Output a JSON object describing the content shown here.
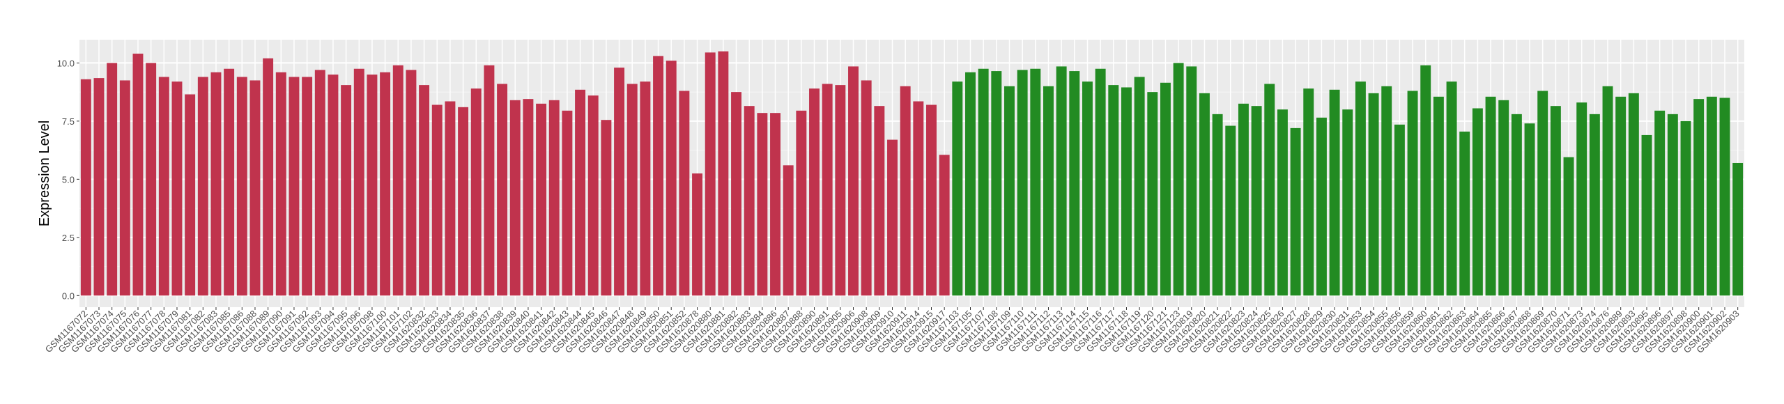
{
  "chart_data": {
    "type": "bar",
    "y_label": "Expression Level",
    "categories": [
      "GSM1167072",
      "GSM1167073",
      "GSM1167074",
      "GSM1167075",
      "GSM1167076",
      "GSM1167077",
      "GSM1167078",
      "GSM1167079",
      "GSM1167081",
      "GSM1167082",
      "GSM1167083",
      "GSM1167085",
      "GSM1167086",
      "GSM1167088",
      "GSM1167089",
      "GSM1167090",
      "GSM1167091",
      "GSM1167092",
      "GSM1167093",
      "GSM1167094",
      "GSM1167095",
      "GSM1167096",
      "GSM1167098",
      "GSM1167100",
      "GSM1167101",
      "GSM1167102",
      "GSM1620832",
      "GSM1620833",
      "GSM1620834",
      "GSM1620835",
      "GSM1620836",
      "GSM1620837",
      "GSM1620838",
      "GSM1620839",
      "GSM1620840",
      "GSM1620841",
      "GSM1620842",
      "GSM1620843",
      "GSM1620844",
      "GSM1620845",
      "GSM1620846",
      "GSM1620847",
      "GSM1620848",
      "GSM1620849",
      "GSM1620850",
      "GSM1620851",
      "GSM1620852",
      "GSM1620878",
      "GSM1620880",
      "GSM1620881",
      "GSM1620882",
      "GSM1620883",
      "GSM1620884",
      "GSM1620886",
      "GSM1620887",
      "GSM1620888",
      "GSM1620890",
      "GSM1620891",
      "GSM1620905",
      "GSM1620906",
      "GSM1620908",
      "GSM1620909",
      "GSM1620910",
      "GSM1620911",
      "GSM1620914",
      "GSM1620915",
      "GSM1620917",
      "GSM1167103",
      "GSM1167105",
      "GSM1167107",
      "GSM1167108",
      "GSM1167109",
      "GSM1167110",
      "GSM1167111",
      "GSM1167112",
      "GSM1167113",
      "GSM1167114",
      "GSM1167115",
      "GSM1167116",
      "GSM1167117",
      "GSM1167118",
      "GSM1167119",
      "GSM1167120",
      "GSM1167121",
      "GSM1167123",
      "GSM1620819",
      "GSM1620820",
      "GSM1620821",
      "GSM1620822",
      "GSM1620823",
      "GSM1620824",
      "GSM1620825",
      "GSM1620826",
      "GSM1620827",
      "GSM1620828",
      "GSM1620829",
      "GSM1620830",
      "GSM1620831",
      "GSM1620853",
      "GSM1620854",
      "GSM1620855",
      "GSM1620856",
      "GSM1620859",
      "GSM1620860",
      "GSM1620861",
      "GSM1620862",
      "GSM1620863",
      "GSM1620864",
      "GSM1620865",
      "GSM1620866",
      "GSM1620867",
      "GSM1620868",
      "GSM1620869",
      "GSM1620870",
      "GSM1620871",
      "GSM1620873",
      "GSM1620874",
      "GSM1620876",
      "GSM1620889",
      "GSM1620893",
      "GSM1620895",
      "GSM1620896",
      "GSM1620897",
      "GSM1620898",
      "GSM1620900",
      "GSM1620901",
      "GSM1620902",
      "GSM1620903"
    ],
    "values": [
      9.3,
      9.35,
      10.0,
      9.25,
      10.4,
      10.0,
      9.4,
      9.2,
      8.65,
      9.4,
      9.6,
      9.75,
      9.4,
      9.25,
      10.2,
      9.6,
      9.4,
      9.4,
      9.7,
      9.5,
      9.05,
      9.75,
      9.5,
      9.6,
      9.9,
      9.7,
      9.05,
      8.2,
      8.35,
      8.1,
      8.9,
      9.9,
      9.1,
      8.4,
      8.45,
      8.25,
      8.4,
      7.95,
      8.85,
      8.6,
      7.55,
      9.8,
      9.1,
      9.2,
      10.3,
      10.1,
      8.8,
      5.25,
      10.45,
      10.5,
      8.75,
      8.15,
      7.85,
      7.85,
      5.6,
      7.95,
      8.9,
      9.1,
      9.05,
      9.85,
      9.25,
      8.15,
      6.7,
      9.0,
      8.35,
      8.2,
      6.05,
      9.2,
      9.6,
      9.75,
      9.65,
      9.0,
      9.7,
      9.75,
      9.0,
      9.85,
      9.65,
      9.2,
      9.75,
      9.05,
      8.95,
      9.4,
      8.75,
      9.15,
      10.0,
      9.85,
      8.7,
      7.8,
      7.3,
      8.25,
      8.15,
      9.1,
      8.0,
      7.2,
      8.9,
      7.65,
      8.85,
      8.0,
      9.2,
      8.7,
      9.0,
      7.35,
      8.8,
      9.9,
      8.55,
      9.2,
      7.05,
      8.05,
      8.55,
      8.4,
      7.8,
      7.4,
      8.8,
      8.15,
      5.95,
      8.3,
      7.8,
      9.0,
      8.55,
      8.7,
      6.9,
      7.95,
      7.8,
      7.5,
      8.45,
      8.55,
      8.5,
      5.7
    ],
    "colors": [
      "#c0334d",
      "#c0334d",
      "#c0334d",
      "#c0334d",
      "#c0334d",
      "#c0334d",
      "#c0334d",
      "#c0334d",
      "#c0334d",
      "#c0334d",
      "#c0334d",
      "#c0334d",
      "#c0334d",
      "#c0334d",
      "#c0334d",
      "#c0334d",
      "#c0334d",
      "#c0334d",
      "#c0334d",
      "#c0334d",
      "#c0334d",
      "#c0334d",
      "#c0334d",
      "#c0334d",
      "#c0334d",
      "#c0334d",
      "#c0334d",
      "#c0334d",
      "#c0334d",
      "#c0334d",
      "#c0334d",
      "#c0334d",
      "#c0334d",
      "#c0334d",
      "#c0334d",
      "#c0334d",
      "#c0334d",
      "#c0334d",
      "#c0334d",
      "#c0334d",
      "#c0334d",
      "#c0334d",
      "#c0334d",
      "#c0334d",
      "#c0334d",
      "#c0334d",
      "#c0334d",
      "#c0334d",
      "#c0334d",
      "#c0334d",
      "#c0334d",
      "#c0334d",
      "#c0334d",
      "#c0334d",
      "#c0334d",
      "#c0334d",
      "#c0334d",
      "#c0334d",
      "#c0334d",
      "#c0334d",
      "#c0334d",
      "#c0334d",
      "#c0334d",
      "#c0334d",
      "#c0334d",
      "#c0334d",
      "#c0334d",
      "#228b22",
      "#228b22",
      "#228b22",
      "#228b22",
      "#228b22",
      "#228b22",
      "#228b22",
      "#228b22",
      "#228b22",
      "#228b22",
      "#228b22",
      "#228b22",
      "#228b22",
      "#228b22",
      "#228b22",
      "#228b22",
      "#228b22",
      "#228b22",
      "#228b22",
      "#228b22",
      "#228b22",
      "#228b22",
      "#228b22",
      "#228b22",
      "#228b22",
      "#228b22",
      "#228b22",
      "#228b22",
      "#228b22",
      "#228b22",
      "#228b22",
      "#228b22",
      "#228b22",
      "#228b22",
      "#228b22",
      "#228b22",
      "#228b22",
      "#228b22",
      "#228b22",
      "#228b22",
      "#228b22",
      "#228b22",
      "#228b22",
      "#228b22",
      "#228b22",
      "#228b22",
      "#228b22",
      "#228b22",
      "#228b22",
      "#228b22",
      "#228b22",
      "#228b22",
      "#228b22",
      "#228b22",
      "#228b22",
      "#228b22",
      "#228b22",
      "#228b22",
      "#228b22",
      "#228b22",
      "#228b22"
    ],
    "ylim": [
      -0.5,
      11.0
    ],
    "yticks": [
      {
        "value": 0,
        "label": "0.0"
      },
      {
        "value": 2.5,
        "label": "2.5"
      },
      {
        "value": 5,
        "label": "5.0"
      },
      {
        "value": 7.5,
        "label": "7.5"
      },
      {
        "value": 10,
        "label": "10.0"
      }
    ],
    "grid": true
  }
}
